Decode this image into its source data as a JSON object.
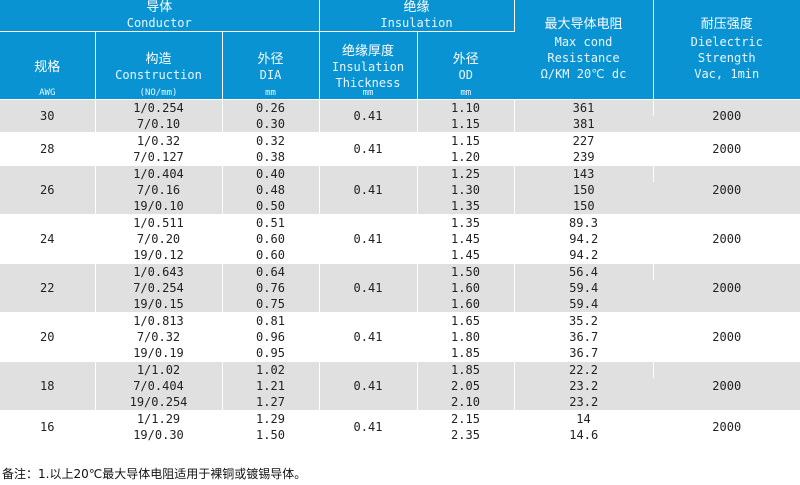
{
  "header": {
    "conductor_zh": "导体",
    "conductor_en": "Conductor",
    "insulation_zh": "绝缘",
    "insulation_en": "Insulation",
    "max_res_zh": "最大导体电阻",
    "max_res_en1": "Max cond",
    "max_res_en2": "Resistance",
    "max_res_en3": "Ω/KM 20℃ dc",
    "dielectric_zh": "耐压强度",
    "dielectric_en1": "Dielectric",
    "dielectric_en2": "Strength",
    "dielectric_en3": "Vac, 1min",
    "gauge_zh": "规格",
    "gauge_unit": "AWG",
    "construction_zh": "构造",
    "construction_en": "Construction",
    "construction_unit": "(NO/mm)",
    "dia_zh": "外径",
    "dia_en": "DIA",
    "dia_unit": "mm",
    "ins_thick_zh": "绝缘厚度",
    "ins_thick_en1": "Insulation",
    "ins_thick_en2": "Thickness",
    "ins_thick_unit": "mm",
    "od_zh": "外径",
    "od_en": "OD",
    "od_unit": "mm"
  },
  "groups": [
    {
      "awg": "30",
      "thickness": "0.41",
      "dielectric": "2000",
      "rows": [
        {
          "construction": "1/0.254",
          "dia": "0.26",
          "od": "1.10",
          "resistance": "361"
        },
        {
          "construction": "7/0.10",
          "dia": "0.30",
          "od": "1.15",
          "resistance": "381"
        }
      ]
    },
    {
      "awg": "28",
      "thickness": "0.41",
      "dielectric": "2000",
      "rows": [
        {
          "construction": "1/0.32",
          "dia": "0.32",
          "od": "1.15",
          "resistance": "227"
        },
        {
          "construction": "7/0.127",
          "dia": "0.38",
          "od": "1.20",
          "resistance": "239"
        }
      ]
    },
    {
      "awg": "26",
      "thickness": "0.41",
      "dielectric": "2000",
      "rows": [
        {
          "construction": "1/0.404",
          "dia": "0.40",
          "od": "1.25",
          "resistance": "143"
        },
        {
          "construction": "7/0.16",
          "dia": "0.48",
          "od": "1.30",
          "resistance": "150"
        },
        {
          "construction": "19/0.10",
          "dia": "0.50",
          "od": "1.35",
          "resistance": "150"
        }
      ]
    },
    {
      "awg": "24",
      "thickness": "0.41",
      "dielectric": "2000",
      "rows": [
        {
          "construction": "1/0.511",
          "dia": "0.51",
          "od": "1.35",
          "resistance": "89.3"
        },
        {
          "construction": "7/0.20",
          "dia": "0.60",
          "od": "1.45",
          "resistance": "94.2"
        },
        {
          "construction": "19/0.12",
          "dia": "0.60",
          "od": "1.45",
          "resistance": "94.2"
        }
      ]
    },
    {
      "awg": "22",
      "thickness": "0.41",
      "dielectric": "2000",
      "rows": [
        {
          "construction": "1/0.643",
          "dia": "0.64",
          "od": "1.50",
          "resistance": "56.4"
        },
        {
          "construction": "7/0.254",
          "dia": "0.76",
          "od": "1.60",
          "resistance": "59.4"
        },
        {
          "construction": "19/0.15",
          "dia": "0.75",
          "od": "1.60",
          "resistance": "59.4"
        }
      ]
    },
    {
      "awg": "20",
      "thickness": "0.41",
      "dielectric": "2000",
      "rows": [
        {
          "construction": "1/0.813",
          "dia": "0.81",
          "od": "1.65",
          "resistance": "35.2"
        },
        {
          "construction": "7/0.32",
          "dia": "0.96",
          "od": "1.80",
          "resistance": "36.7"
        },
        {
          "construction": "19/0.19",
          "dia": "0.95",
          "od": "1.85",
          "resistance": "36.7"
        }
      ]
    },
    {
      "awg": "18",
      "thickness": "0.41",
      "dielectric": "2000",
      "rows": [
        {
          "construction": "1/1.02",
          "dia": "1.02",
          "od": "1.85",
          "resistance": "22.2"
        },
        {
          "construction": "7/0.404",
          "dia": "1.21",
          "od": "2.05",
          "resistance": "23.2"
        },
        {
          "construction": "19/0.254",
          "dia": "1.27",
          "od": "2.10",
          "resistance": "23.2"
        }
      ]
    },
    {
      "awg": "16",
      "thickness": "0.41",
      "dielectric": "2000",
      "rows": [
        {
          "construction": "1/1.29",
          "dia": "1.29",
          "od": "2.15",
          "resistance": "14"
        },
        {
          "construction": "19/0.30",
          "dia": "1.50",
          "od": "2.35",
          "resistance": "14.6"
        }
      ]
    }
  ],
  "note": "备注：1.以上20℃最大导体电阻适用于裸铜或镀锡导体。"
}
